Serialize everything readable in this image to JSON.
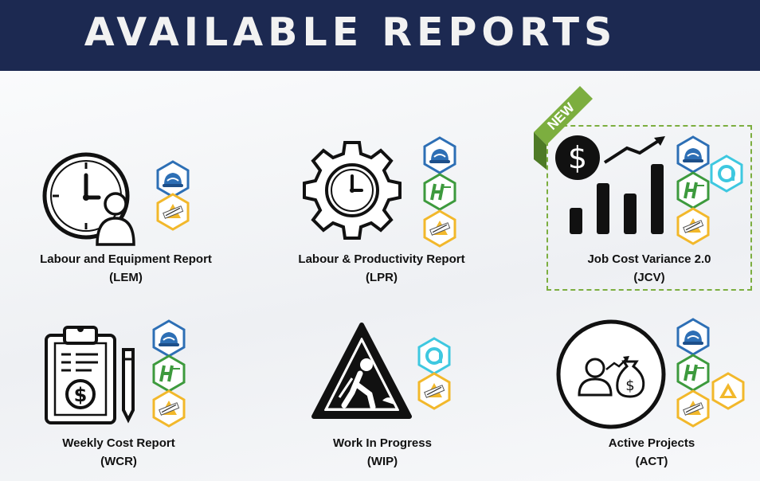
{
  "header": {
    "title": "AVAILABLE REPORTS"
  },
  "new_badge": "NEW",
  "colors": {
    "header_bg": "#1c2951",
    "accent_green": "#7cae3f",
    "badge_blue": "#2d6fb5",
    "badge_yellow": "#f2b82b",
    "badge_green": "#3d9a3d",
    "badge_cyan": "#3ec8e0"
  },
  "reports": [
    {
      "name": "Labour and Equipment Report",
      "code": "(LEM)",
      "icon": "clock-person-icon",
      "badges": [
        "blue-hard-hat-icon",
        "yellow-software-icon"
      ]
    },
    {
      "name": "Labour & Productivity Report",
      "code": "(LPR)",
      "icon": "gear-clock-icon",
      "badges": [
        "blue-hard-hat-icon",
        "green-hcss-icon",
        "yellow-software-icon"
      ]
    },
    {
      "name": "Job Cost Variance 2.0",
      "code": "(JCV)",
      "icon": "dollar-growth-chart-icon",
      "badges": [
        "blue-hard-hat-icon",
        "green-hcss-icon",
        "yellow-software-icon",
        "cyan-a-icon"
      ],
      "is_new": true
    },
    {
      "name": "Weekly Cost Report",
      "code": "(WCR)",
      "icon": "clipboard-dollar-icon",
      "badges": [
        "blue-hard-hat-icon",
        "green-hcss-icon",
        "yellow-software-icon"
      ]
    },
    {
      "name": "Work In Progress",
      "code": "(WIP)",
      "icon": "construction-sign-icon",
      "badges": [
        "cyan-a-icon",
        "yellow-software-icon"
      ]
    },
    {
      "name": "Active Projects",
      "code": "(ACT)",
      "icon": "person-money-icon",
      "badges": [
        "blue-hard-hat-icon",
        "green-hcss-icon",
        "yellow-software-icon",
        "yellow-triangle-icon"
      ]
    }
  ]
}
